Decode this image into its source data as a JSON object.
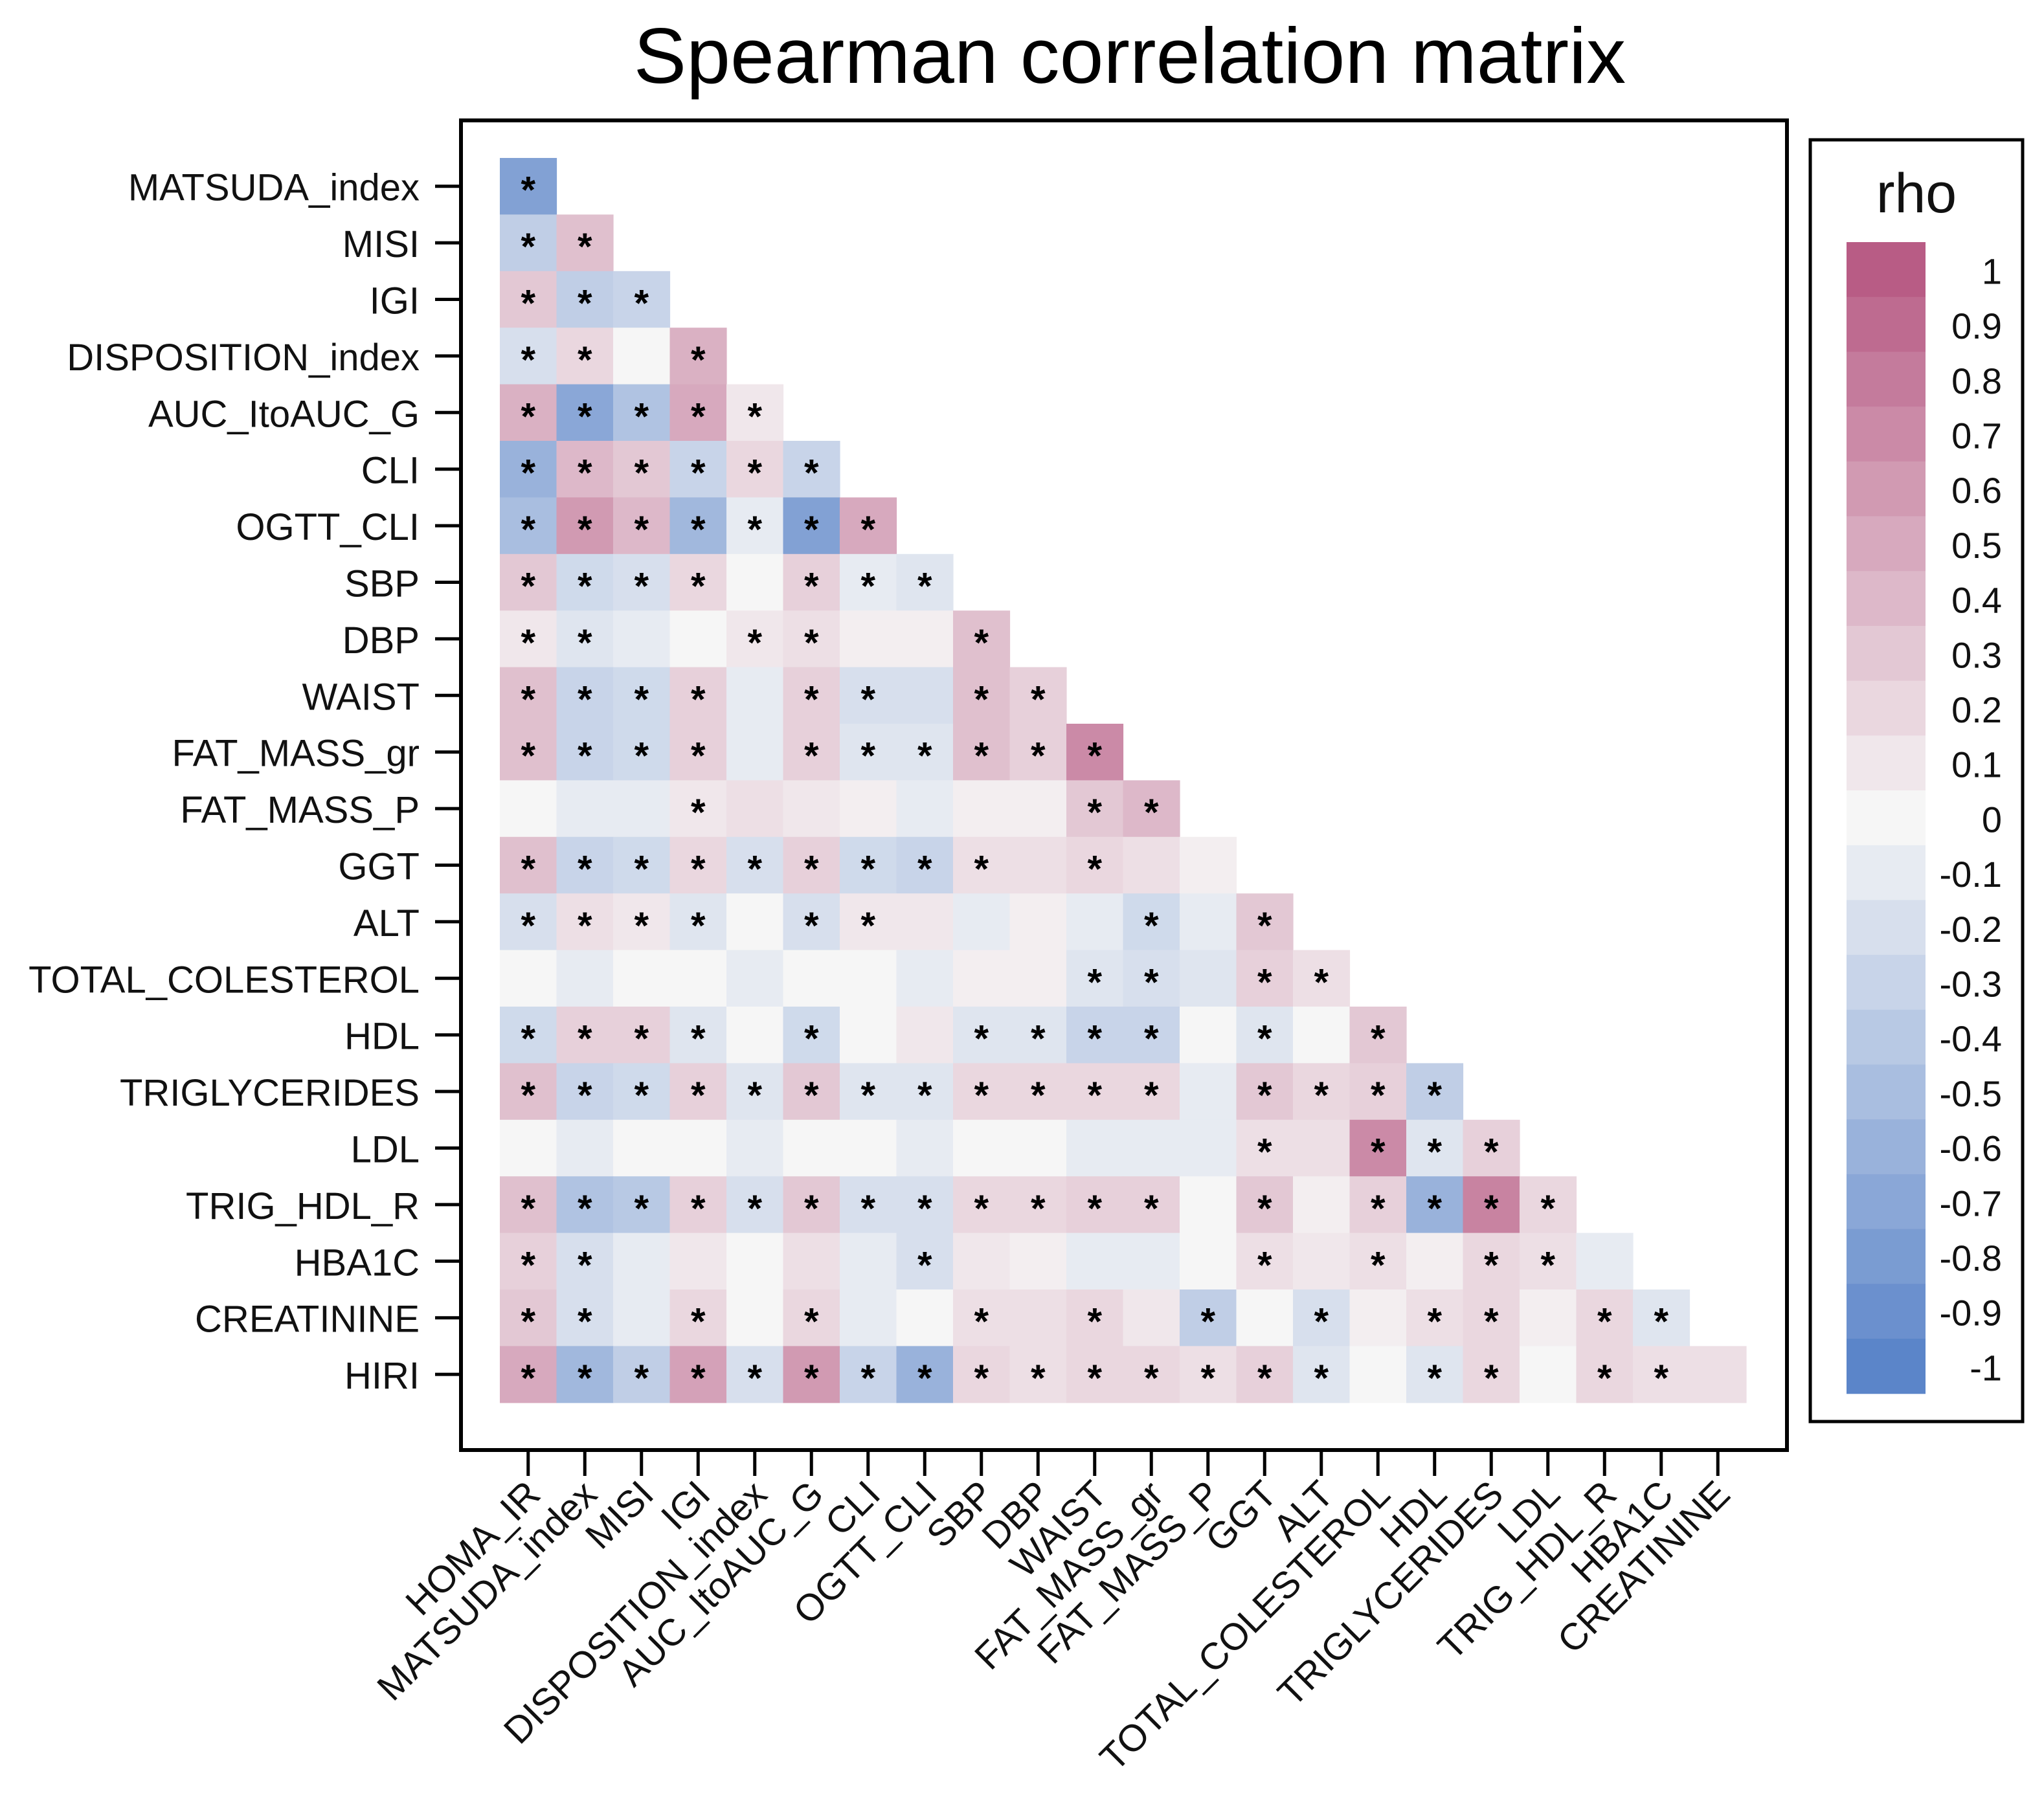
{
  "chart_data": {
    "type": "heatmap",
    "title": "Spearman correlation matrix",
    "legend_title": "rho",
    "legend_ticks": [
      "1",
      "0.9",
      "0.8",
      "0.7",
      "0.6",
      "0.5",
      "0.4",
      "0.3",
      "0.2",
      "0.1",
      "0",
      "-0.1",
      "-0.2",
      "-0.3",
      "-0.4",
      "-0.5",
      "-0.6",
      "-0.7",
      "-0.8",
      "-0.9",
      "-1"
    ],
    "color_scale": {
      "min": -1,
      "max": 1,
      "negative": "#5b85c9",
      "zero": "#f6f6f6",
      "positive": "#b85c85"
    },
    "row_labels": [
      "MATSUDA_index",
      "MISI",
      "IGI",
      "DISPOSITION_index",
      "AUC_ItoAUC_G",
      "CLI",
      "OGTT_CLI",
      "SBP",
      "DBP",
      "WAIST",
      "FAT_MASS_gr",
      "FAT_MASS_P",
      "GGT",
      "ALT",
      "TOTAL_COLESTEROL",
      "HDL",
      "TRIGLYCERIDES",
      "LDL",
      "TRIG_HDL_R",
      "HBA1C",
      "CREATININE",
      "HIRI"
    ],
    "col_labels": [
      "HOMA_IR",
      "MATSUDA_index",
      "MISI",
      "IGI",
      "DISPOSITION_index",
      "AUC_ItoAUC_G",
      "CLI",
      "OGTT_CLI",
      "SBP",
      "DBP",
      "WAIST",
      "FAT_MASS_gr",
      "FAT_MASS_P",
      "GGT",
      "ALT",
      "TOTAL_COLESTEROL",
      "HDL",
      "TRIGLYCERIDES",
      "LDL",
      "TRIG_HDL_R",
      "HBA1C",
      "CREATININE"
    ],
    "rho": [
      [
        -0.75
      ],
      [
        -0.35,
        0.35
      ],
      [
        0.3,
        -0.35,
        -0.3
      ],
      [
        -0.2,
        0.2,
        0.0,
        0.45
      ],
      [
        0.45,
        -0.7,
        -0.45,
        0.5,
        0.1
      ],
      [
        -0.6,
        0.4,
        0.3,
        -0.3,
        0.2,
        -0.3
      ],
      [
        -0.5,
        0.6,
        0.4,
        -0.55,
        -0.1,
        -0.75,
        0.5
      ],
      [
        0.3,
        -0.25,
        -0.2,
        0.2,
        0.0,
        0.25,
        -0.1,
        -0.15
      ],
      [
        0.1,
        -0.15,
        -0.1,
        0.0,
        0.1,
        0.15,
        0.05,
        0.05,
        0.35
      ],
      [
        0.35,
        -0.3,
        -0.25,
        0.25,
        -0.1,
        0.25,
        -0.2,
        -0.2,
        0.35,
        0.25
      ],
      [
        0.35,
        -0.3,
        -0.25,
        0.25,
        -0.1,
        0.25,
        -0.15,
        -0.15,
        0.35,
        0.25,
        0.7
      ],
      [
        0.0,
        -0.1,
        -0.1,
        0.1,
        0.15,
        0.1,
        0.05,
        -0.1,
        0.05,
        0.05,
        0.3,
        0.4
      ],
      [
        0.35,
        -0.3,
        -0.25,
        0.2,
        -0.2,
        0.25,
        -0.25,
        -0.3,
        0.15,
        0.15,
        0.2,
        0.15,
        0.05
      ],
      [
        -0.2,
        0.15,
        0.1,
        -0.15,
        0.0,
        -0.2,
        0.1,
        0.1,
        -0.1,
        0.05,
        -0.1,
        -0.25,
        -0.1,
        0.3
      ],
      [
        0.0,
        -0.1,
        0.0,
        0.0,
        -0.1,
        0.0,
        0.0,
        -0.1,
        0.05,
        0.05,
        -0.15,
        -0.2,
        -0.15,
        0.25,
        0.15
      ],
      [
        -0.25,
        0.25,
        0.25,
        -0.15,
        0.0,
        -0.25,
        0.0,
        0.1,
        -0.15,
        -0.15,
        -0.3,
        -0.3,
        0.0,
        -0.15,
        0.0,
        0.3
      ],
      [
        0.35,
        -0.3,
        -0.25,
        0.25,
        -0.15,
        0.3,
        -0.15,
        -0.15,
        0.2,
        0.2,
        0.2,
        0.2,
        -0.1,
        0.3,
        0.2,
        0.25,
        -0.35
      ],
      [
        0.0,
        -0.1,
        0.0,
        0.0,
        -0.1,
        0.0,
        0.0,
        -0.1,
        0.0,
        0.0,
        -0.1,
        -0.1,
        -0.1,
        0.15,
        0.15,
        0.7,
        -0.15,
        0.25
      ],
      [
        0.35,
        -0.45,
        -0.4,
        0.25,
        -0.2,
        0.3,
        -0.2,
        -0.2,
        0.2,
        0.2,
        0.25,
        0.25,
        0.0,
        0.3,
        0.05,
        0.25,
        -0.6,
        0.75,
        0.2
      ],
      [
        0.25,
        -0.2,
        -0.1,
        0.1,
        0.0,
        0.15,
        -0.1,
        -0.2,
        0.1,
        0.05,
        -0.1,
        -0.1,
        0.0,
        0.15,
        0.1,
        0.15,
        0.05,
        0.2,
        0.15,
        -0.1
      ],
      [
        0.3,
        -0.2,
        -0.1,
        0.2,
        0.0,
        0.2,
        -0.1,
        0.0,
        0.15,
        0.15,
        0.2,
        0.1,
        -0.35,
        0.0,
        -0.2,
        0.05,
        0.15,
        0.2,
        0.05,
        0.2,
        -0.15
      ],
      [
        0.5,
        -0.55,
        -0.35,
        0.55,
        -0.2,
        0.6,
        -0.3,
        -0.6,
        0.2,
        0.15,
        0.2,
        0.2,
        0.15,
        0.25,
        -0.15,
        0.0,
        -0.15,
        0.2,
        0.0,
        0.2,
        0.15,
        0.15
      ]
    ],
    "sig": [
      [
        1
      ],
      [
        1,
        1
      ],
      [
        1,
        1,
        1
      ],
      [
        1,
        1,
        0,
        1
      ],
      [
        1,
        1,
        1,
        1,
        1
      ],
      [
        1,
        1,
        1,
        1,
        1,
        1
      ],
      [
        1,
        1,
        1,
        1,
        1,
        1,
        1
      ],
      [
        1,
        1,
        1,
        1,
        0,
        1,
        1,
        1
      ],
      [
        1,
        1,
        0,
        0,
        1,
        1,
        0,
        0,
        1
      ],
      [
        1,
        1,
        1,
        1,
        0,
        1,
        1,
        0,
        1,
        1
      ],
      [
        1,
        1,
        1,
        1,
        0,
        1,
        1,
        1,
        1,
        1,
        1
      ],
      [
        0,
        0,
        0,
        1,
        0,
        0,
        0,
        0,
        0,
        0,
        1,
        1
      ],
      [
        1,
        1,
        1,
        1,
        1,
        1,
        1,
        1,
        1,
        0,
        1,
        0,
        0
      ],
      [
        1,
        1,
        1,
        1,
        0,
        1,
        1,
        0,
        0,
        0,
        0,
        1,
        0,
        1
      ],
      [
        0,
        0,
        0,
        0,
        0,
        0,
        0,
        0,
        0,
        0,
        1,
        1,
        0,
        1,
        1
      ],
      [
        1,
        1,
        1,
        1,
        0,
        1,
        0,
        0,
        1,
        1,
        1,
        1,
        0,
        1,
        0,
        1
      ],
      [
        1,
        1,
        1,
        1,
        1,
        1,
        1,
        1,
        1,
        1,
        1,
        1,
        0,
        1,
        1,
        1,
        1
      ],
      [
        0,
        0,
        0,
        0,
        0,
        0,
        0,
        0,
        0,
        0,
        0,
        0,
        0,
        1,
        0,
        1,
        1,
        1
      ],
      [
        1,
        1,
        1,
        1,
        1,
        1,
        1,
        1,
        1,
        1,
        1,
        1,
        0,
        1,
        0,
        1,
        1,
        1,
        1
      ],
      [
        1,
        1,
        0,
        0,
        0,
        0,
        0,
        1,
        0,
        0,
        0,
        0,
        0,
        1,
        0,
        1,
        0,
        1,
        1,
        0
      ],
      [
        1,
        1,
        0,
        1,
        0,
        1,
        0,
        0,
        1,
        0,
        1,
        0,
        1,
        0,
        1,
        0,
        1,
        1,
        0,
        1,
        1
      ],
      [
        1,
        1,
        1,
        1,
        1,
        1,
        1,
        1,
        1,
        1,
        1,
        1,
        1,
        1,
        1,
        0,
        1,
        1,
        0,
        1,
        1,
        0
      ]
    ],
    "significance_marker": "*"
  }
}
